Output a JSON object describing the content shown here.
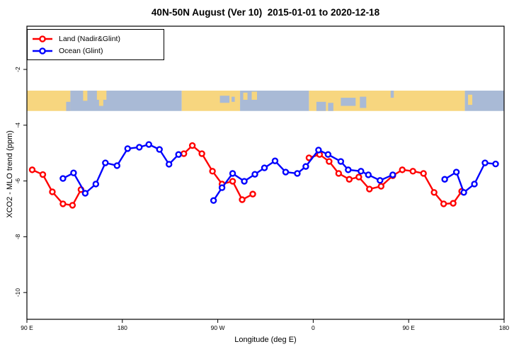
{
  "chart_data": {
    "type": "line",
    "title": "40N-50N August (Ver 10)  2015-01-01 to 2020-12-18",
    "xlabel": "Longitude (deg E)",
    "ylabel": "XCO2 - MLO trend (ppm)",
    "xlim": [
      90,
      540
    ],
    "ylim": [
      -10.96,
      -0.45
    ],
    "grid": false,
    "legend_position": "top-left",
    "x_ticks": [
      {
        "value": 90,
        "label": "90 E"
      },
      {
        "value": 180,
        "label": "180"
      },
      {
        "value": 270,
        "label": "90 W"
      },
      {
        "value": 360,
        "label": "0"
      },
      {
        "value": 450,
        "label": "90 E"
      },
      {
        "value": 540,
        "label": "180"
      }
    ],
    "y_ticks": [
      {
        "value": -2,
        "label": "-2"
      },
      {
        "value": -4,
        "label": "-4"
      },
      {
        "value": -6,
        "label": "-6"
      },
      {
        "value": -8,
        "label": "-8"
      },
      {
        "value": -10,
        "label": "-10"
      }
    ],
    "series": [
      {
        "name": "Land (Nadir&Glint)",
        "color": "#ff0000",
        "segments": [
          [
            [
              95,
              -5.6
            ],
            [
              105,
              -5.77
            ],
            [
              114,
              -6.39
            ],
            [
              124,
              -6.82
            ],
            [
              133,
              -6.87
            ],
            [
              141,
              -6.31
            ]
          ],
          [
            [
              238,
              -5.02
            ],
            [
              246,
              -4.73
            ],
            [
              255,
              -5.02
            ],
            [
              265,
              -5.65
            ],
            [
              274,
              -6.11
            ],
            [
              284,
              -6.01
            ],
            [
              293,
              -6.67
            ],
            [
              303,
              -6.47
            ]
          ],
          [
            [
              356,
              -5.17
            ],
            [
              366,
              -5.05
            ],
            [
              375,
              -5.3
            ],
            [
              384,
              -5.73
            ],
            [
              394,
              -5.94
            ],
            [
              403,
              -5.86
            ],
            [
              413,
              -6.29
            ],
            [
              424,
              -6.19
            ],
            [
              435,
              -5.81
            ],
            [
              444,
              -5.6
            ],
            [
              454,
              -5.65
            ],
            [
              464,
              -5.73
            ],
            [
              474,
              -6.41
            ],
            [
              483,
              -6.82
            ],
            [
              492,
              -6.8
            ],
            [
              500,
              -6.37
            ]
          ]
        ]
      },
      {
        "name": "Ocean (Glint)",
        "color": "#0000ff",
        "segments": [
          [
            [
              124,
              -5.91
            ],
            [
              134,
              -5.71
            ],
            [
              145,
              -6.44
            ],
            [
              155,
              -6.11
            ],
            [
              164,
              -5.35
            ],
            [
              175,
              -5.45
            ],
            [
              185,
              -4.84
            ],
            [
              196,
              -4.79
            ],
            [
              205,
              -4.69
            ],
            [
              215,
              -4.87
            ],
            [
              224,
              -5.4
            ],
            [
              233,
              -5.05
            ]
          ],
          [
            [
              266,
              -6.7
            ],
            [
              274,
              -6.24
            ],
            [
              284,
              -5.73
            ],
            [
              295,
              -6.01
            ],
            [
              305,
              -5.76
            ],
            [
              314,
              -5.53
            ],
            [
              324,
              -5.28
            ],
            [
              334,
              -5.68
            ],
            [
              345,
              -5.73
            ],
            [
              353,
              -5.48
            ],
            [
              365,
              -4.89
            ],
            [
              374,
              -5.05
            ],
            [
              386,
              -5.3
            ],
            [
              393,
              -5.6
            ],
            [
              405,
              -5.65
            ],
            [
              412,
              -5.78
            ],
            [
              423,
              -5.98
            ],
            [
              435,
              -5.78
            ]
          ],
          [
            [
              484,
              -5.94
            ],
            [
              495,
              -5.68
            ],
            [
              502,
              -6.41
            ],
            [
              512,
              -6.11
            ],
            [
              522,
              -5.35
            ],
            [
              532,
              -5.39
            ]
          ]
        ]
      }
    ],
    "map_band": {
      "y_from": -2.76,
      "y_to": -3.49,
      "land_color": "#f7d67f",
      "ocean_color": "#a9bad6",
      "segments": [
        {
          "from": 90,
          "to": 131,
          "type": "land"
        },
        {
          "from": 131,
          "to": 236,
          "type": "ocean"
        },
        {
          "from": 236,
          "to": 291,
          "type": "land"
        },
        {
          "from": 291,
          "to": 356,
          "type": "ocean"
        },
        {
          "from": 356,
          "to": 503,
          "type": "land"
        },
        {
          "from": 503,
          "to": 540,
          "type": "ocean"
        }
      ],
      "patches": [
        {
          "from": 127,
          "to": 131,
          "type": "ocean",
          "top": 0.55,
          "h": 0.45
        },
        {
          "from": 143,
          "to": 147,
          "type": "land",
          "top": 0.0,
          "h": 0.5
        },
        {
          "from": 156,
          "to": 165,
          "type": "land",
          "top": 0.0,
          "h": 0.45
        },
        {
          "from": 158,
          "to": 162,
          "type": "land",
          "top": 0.45,
          "h": 0.3
        },
        {
          "from": 272,
          "to": 281,
          "type": "ocean",
          "top": 0.25,
          "h": 0.35
        },
        {
          "from": 283,
          "to": 286,
          "type": "ocean",
          "top": 0.3,
          "h": 0.25
        },
        {
          "from": 294,
          "to": 298,
          "type": "land",
          "top": 0.1,
          "h": 0.35
        },
        {
          "from": 302,
          "to": 307,
          "type": "land",
          "top": 0.05,
          "h": 0.4
        },
        {
          "from": 363,
          "to": 372,
          "type": "ocean",
          "top": 0.55,
          "h": 0.45
        },
        {
          "from": 374,
          "to": 379,
          "type": "ocean",
          "top": 0.6,
          "h": 0.4
        },
        {
          "from": 386,
          "to": 400,
          "type": "ocean",
          "top": 0.35,
          "h": 0.4
        },
        {
          "from": 404,
          "to": 410,
          "type": "ocean",
          "top": 0.3,
          "h": 0.55
        },
        {
          "from": 433,
          "to": 436,
          "type": "ocean",
          "top": 0.0,
          "h": 0.35
        },
        {
          "from": 506,
          "to": 510,
          "type": "land",
          "top": 0.2,
          "h": 0.5
        }
      ]
    }
  },
  "legend": {
    "items": [
      {
        "label": "Land (Nadir&Glint)",
        "color": "#ff0000"
      },
      {
        "label": "Ocean (Glint)",
        "color": "#0000ff"
      }
    ]
  }
}
